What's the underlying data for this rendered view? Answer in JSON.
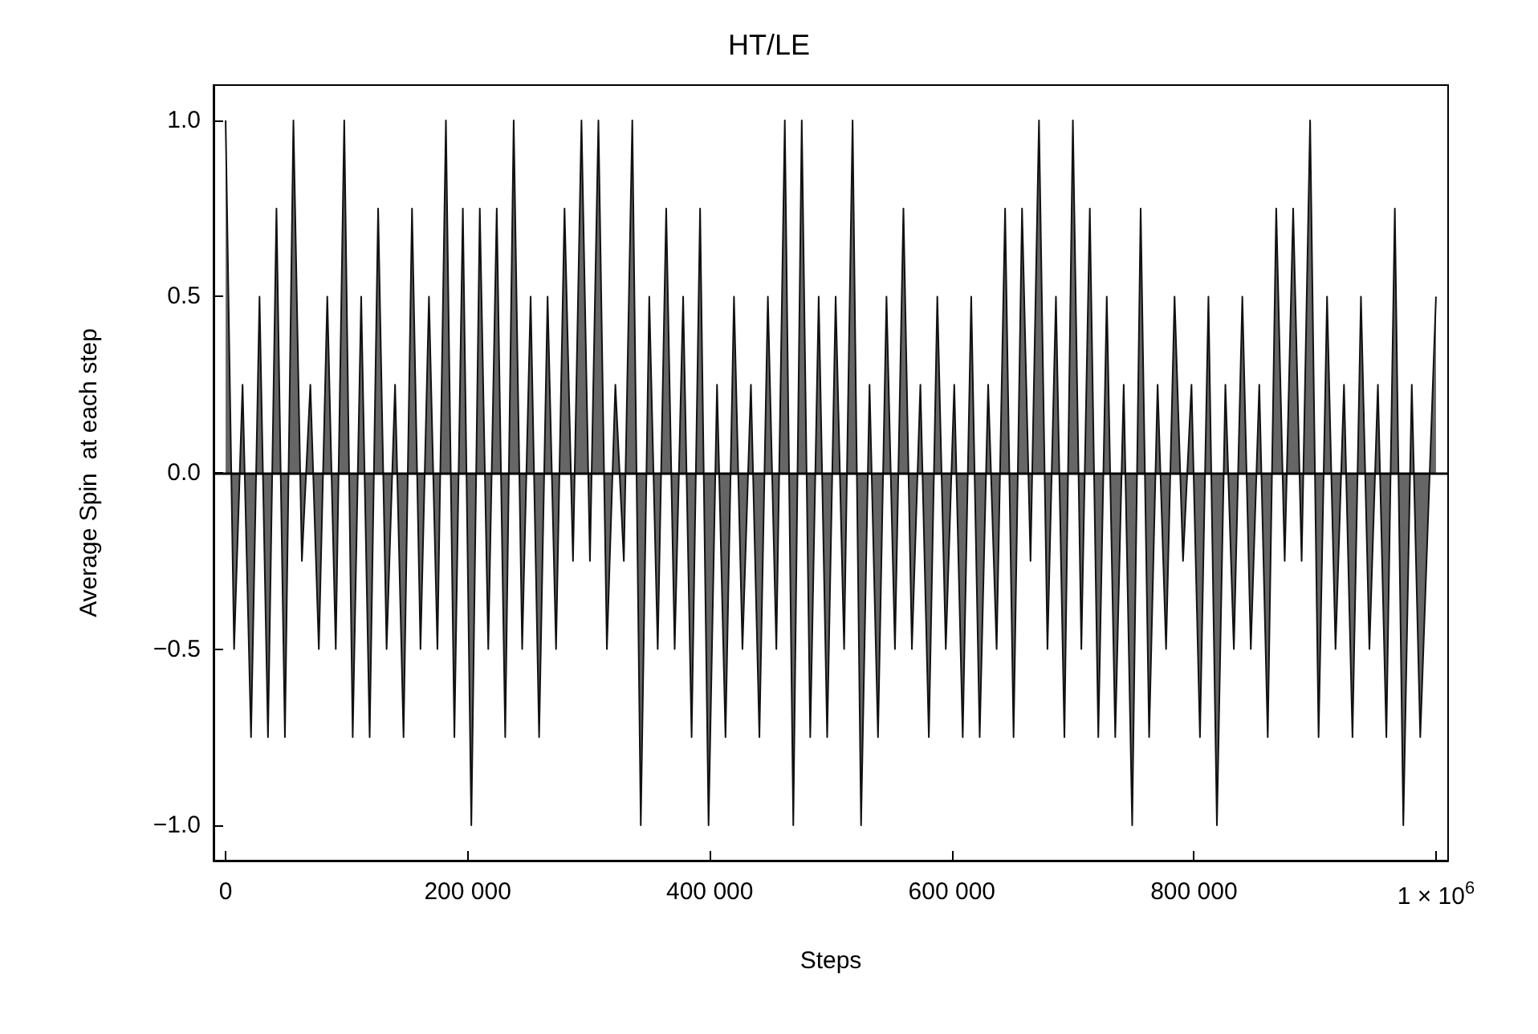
{
  "chart_data": {
    "type": "area",
    "title": "HT/LE",
    "xlabel": "Steps",
    "ylabel": "Average Spin  at each step",
    "x": [
      0,
      7000,
      14000,
      21000,
      28000,
      35000,
      42000,
      49000,
      56000,
      63000,
      70000,
      77000,
      84000,
      91000,
      98000,
      105000,
      112000,
      119000,
      126000,
      133000,
      140000,
      147000,
      154000,
      161000,
      168000,
      175000,
      182000,
      189000,
      196000,
      203000,
      210000,
      217000,
      224000,
      231000,
      238000,
      245000,
      252000,
      259000,
      266000,
      273000,
      280000,
      287000,
      294000,
      301000,
      308000,
      315000,
      322000,
      329000,
      336000,
      343000,
      350000,
      357000,
      364000,
      371000,
      378000,
      385000,
      392000,
      399000,
      406000,
      413000,
      420000,
      427000,
      434000,
      441000,
      448000,
      455000,
      462000,
      469000,
      476000,
      483000,
      490000,
      497000,
      504000,
      511000,
      518000,
      525000,
      532000,
      539000,
      546000,
      553000,
      560000,
      567000,
      574000,
      581000,
      588000,
      595000,
      602000,
      609000,
      616000,
      623000,
      630000,
      637000,
      644000,
      651000,
      658000,
      665000,
      672000,
      679000,
      686000,
      693000,
      700000,
      707000,
      714000,
      721000,
      728000,
      735000,
      742000,
      749000,
      756000,
      763000,
      770000,
      777000,
      784000,
      791000,
      798000,
      805000,
      812000,
      819000,
      826000,
      833000,
      840000,
      847000,
      854000,
      861000,
      868000,
      875000,
      882000,
      889000,
      896000,
      903000,
      910000,
      917000,
      924000,
      931000,
      938000,
      945000,
      952000,
      959000,
      966000,
      973000,
      980000,
      987000,
      1000000
    ],
    "series": [
      {
        "color": "#666666",
        "values": [
          1.0,
          -0.5,
          0.25,
          -0.75,
          0.5,
          -0.75,
          0.75,
          -0.75,
          1.0,
          -0.25,
          0.25,
          -0.5,
          0.5,
          -0.5,
          1.0,
          -0.75,
          0.5,
          -0.75,
          0.75,
          -0.5,
          0.25,
          -0.75,
          0.75,
          -0.5,
          0.5,
          -0.5,
          1.0,
          -0.75,
          0.75,
          -1.0,
          0.75,
          -0.5,
          0.75,
          -0.75,
          1.0,
          -0.5,
          0.5,
          -0.75,
          0.5,
          -0.5,
          0.75,
          -0.25,
          1.0,
          -0.25,
          1.0,
          -0.5,
          0.25,
          -0.25,
          1.0,
          -1.0,
          0.5,
          -0.5,
          0.75,
          -0.5,
          0.5,
          -0.75,
          0.75,
          -1.0,
          0.25,
          -0.75,
          0.5,
          -0.5,
          0.25,
          -0.75,
          0.5,
          -0.5,
          1.0,
          -1.0,
          1.0,
          -0.75,
          0.5,
          -0.75,
          0.5,
          -0.5,
          1.0,
          -1.0,
          0.25,
          -0.75,
          0.5,
          -0.5,
          0.75,
          -0.5,
          0.25,
          -0.75,
          0.5,
          -0.5,
          0.25,
          -0.75,
          0.5,
          -0.75,
          0.25,
          -0.5,
          0.75,
          -0.75,
          0.75,
          -0.25,
          1.0,
          -0.5,
          0.5,
          -0.75,
          1.0,
          -0.5,
          0.75,
          -0.75,
          0.5,
          -0.75,
          0.25,
          -1.0,
          0.75,
          -0.75,
          0.25,
          -0.5,
          0.5,
          -0.25,
          0.25,
          -0.75,
          0.5,
          -1.0,
          0.25,
          -0.5,
          0.5,
          -0.5,
          0.25,
          -0.75,
          0.75,
          -0.25,
          0.75,
          -0.25,
          1.0,
          -0.75,
          0.5,
          -0.5,
          0.25,
          -0.75,
          0.5,
          -0.5,
          0.25,
          -0.75,
          0.75,
          -1.0,
          0.25,
          -0.75,
          0.5
        ]
      }
    ],
    "xlim": [
      -10000,
      1010000
    ],
    "xticks": [
      0,
      {
        "value": 200000,
        "label": "200 000"
      },
      {
        "value": 400000,
        "label": "400 000"
      },
      {
        "value": 600000,
        "label": "600 000"
      },
      {
        "value": 800000,
        "label": "800 000"
      },
      {
        "value": 1000000,
        "label": "1 × 10$^{6}$"
      }
    ],
    "ylim": [
      -1.1,
      1.1
    ],
    "yticks": [
      {
        "value": -1,
        "label": "−1.0"
      },
      {
        "value": -0.5,
        "label": "−0.5"
      },
      {
        "value": 0,
        "label": "0.0"
      },
      {
        "value": 0.5,
        "label": "0.5"
      },
      {
        "value": 1,
        "label": "1.0"
      }
    ],
    "ref_lines": [
      {
        "axis": "y",
        "value": 0,
        "color": "#000000"
      }
    ]
  }
}
